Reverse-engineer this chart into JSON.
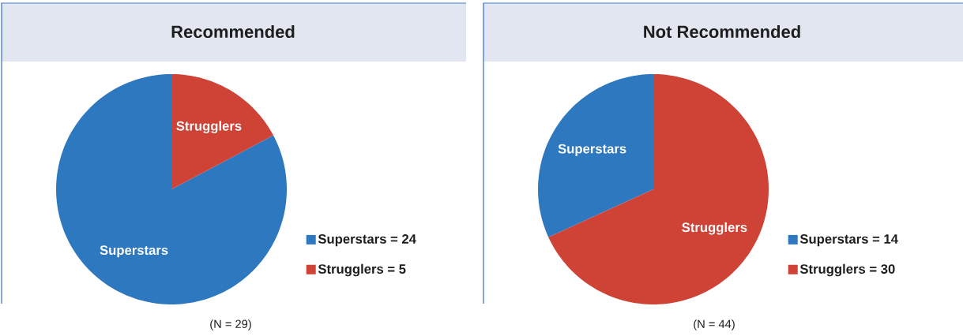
{
  "chart_data": [
    {
      "type": "pie",
      "title": "Recommended",
      "categories": [
        "Superstars = 24",
        "Strugglers = 5"
      ],
      "values": [
        24,
        5
      ],
      "colors": [
        "#2e78c0",
        "#cf4236"
      ],
      "legend": "right",
      "annotations": [
        "Superstars",
        "Strugglers",
        "(N = 29)"
      ]
    },
    {
      "type": "pie",
      "title": "Not Recommended",
      "categories": [
        "Superstars = 14",
        "Strugglers = 30"
      ],
      "values": [
        14,
        30
      ],
      "colors": [
        "#2e78c0",
        "#cf4236"
      ],
      "legend": "right",
      "annotations": [
        "Superstars",
        "Strugglers",
        "(N = 44)"
      ]
    }
  ]
}
